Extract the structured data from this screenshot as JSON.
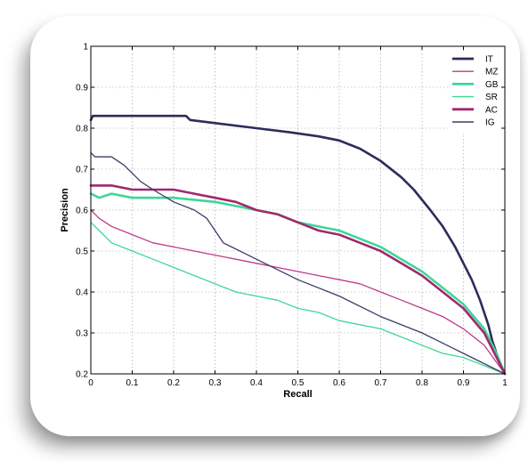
{
  "chart_data": {
    "type": "line",
    "xlabel": "Recall",
    "ylabel": "Precision",
    "xlim": [
      0,
      1
    ],
    "ylim": [
      0.2,
      1
    ],
    "xticks": [
      "0",
      "0.1",
      "0.2",
      "0.3",
      "0.4",
      "0.5",
      "0.6",
      "0.7",
      "0.8",
      "0.9",
      "1"
    ],
    "yticks": [
      "0.2",
      "0.3",
      "0.4",
      "0.5",
      "0.6",
      "0.7",
      "0.8",
      "0.9",
      "1"
    ],
    "grid": true,
    "legend_position": "top-right",
    "series": [
      {
        "name": "IT",
        "color": "#2b2d5a",
        "stroke": "thick",
        "points": [
          [
            0,
            0.82
          ],
          [
            0.005,
            0.83
          ],
          [
            0.23,
            0.83
          ],
          [
            0.24,
            0.82
          ],
          [
            0.32,
            0.81
          ],
          [
            0.4,
            0.8
          ],
          [
            0.48,
            0.79
          ],
          [
            0.55,
            0.78
          ],
          [
            0.6,
            0.77
          ],
          [
            0.65,
            0.75
          ],
          [
            0.7,
            0.72
          ],
          [
            0.75,
            0.68
          ],
          [
            0.78,
            0.65
          ],
          [
            0.82,
            0.6
          ],
          [
            0.85,
            0.56
          ],
          [
            0.88,
            0.51
          ],
          [
            0.9,
            0.47
          ],
          [
            0.92,
            0.43
          ],
          [
            0.94,
            0.38
          ],
          [
            0.96,
            0.32
          ],
          [
            0.97,
            0.28
          ],
          [
            0.98,
            0.25
          ],
          [
            0.99,
            0.22
          ],
          [
            1,
            0.2
          ]
        ]
      },
      {
        "name": "MZ",
        "color": "#c03a8a",
        "stroke": "thin",
        "points": [
          [
            0,
            0.6
          ],
          [
            0.02,
            0.58
          ],
          [
            0.05,
            0.56
          ],
          [
            0.1,
            0.54
          ],
          [
            0.15,
            0.52
          ],
          [
            0.2,
            0.51
          ],
          [
            0.25,
            0.5
          ],
          [
            0.3,
            0.49
          ],
          [
            0.35,
            0.48
          ],
          [
            0.4,
            0.47
          ],
          [
            0.45,
            0.46
          ],
          [
            0.5,
            0.45
          ],
          [
            0.55,
            0.44
          ],
          [
            0.6,
            0.43
          ],
          [
            0.65,
            0.42
          ],
          [
            0.7,
            0.4
          ],
          [
            0.75,
            0.38
          ],
          [
            0.8,
            0.36
          ],
          [
            0.85,
            0.34
          ],
          [
            0.9,
            0.31
          ],
          [
            0.95,
            0.27
          ],
          [
            1,
            0.2
          ]
        ]
      },
      {
        "name": "GB",
        "color": "#3fd698",
        "stroke": "thick",
        "points": [
          [
            0,
            0.64
          ],
          [
            0.02,
            0.63
          ],
          [
            0.05,
            0.64
          ],
          [
            0.1,
            0.63
          ],
          [
            0.2,
            0.63
          ],
          [
            0.3,
            0.62
          ],
          [
            0.35,
            0.61
          ],
          [
            0.4,
            0.6
          ],
          [
            0.45,
            0.59
          ],
          [
            0.5,
            0.57
          ],
          [
            0.55,
            0.56
          ],
          [
            0.6,
            0.55
          ],
          [
            0.65,
            0.53
          ],
          [
            0.7,
            0.51
          ],
          [
            0.75,
            0.48
          ],
          [
            0.8,
            0.45
          ],
          [
            0.85,
            0.41
          ],
          [
            0.9,
            0.37
          ],
          [
            0.95,
            0.31
          ],
          [
            0.98,
            0.25
          ],
          [
            1,
            0.2
          ]
        ]
      },
      {
        "name": "SR",
        "color": "#3fd698",
        "stroke": "thin",
        "points": [
          [
            0,
            0.57
          ],
          [
            0.02,
            0.55
          ],
          [
            0.05,
            0.52
          ],
          [
            0.1,
            0.5
          ],
          [
            0.15,
            0.48
          ],
          [
            0.2,
            0.46
          ],
          [
            0.25,
            0.44
          ],
          [
            0.3,
            0.42
          ],
          [
            0.35,
            0.4
          ],
          [
            0.4,
            0.39
          ],
          [
            0.45,
            0.38
          ],
          [
            0.5,
            0.36
          ],
          [
            0.55,
            0.35
          ],
          [
            0.6,
            0.33
          ],
          [
            0.65,
            0.32
          ],
          [
            0.7,
            0.31
          ],
          [
            0.75,
            0.29
          ],
          [
            0.8,
            0.27
          ],
          [
            0.85,
            0.25
          ],
          [
            0.9,
            0.24
          ],
          [
            0.95,
            0.22
          ],
          [
            1,
            0.2
          ]
        ]
      },
      {
        "name": "AC",
        "color": "#a0286e",
        "stroke": "thick",
        "points": [
          [
            0,
            0.66
          ],
          [
            0.05,
            0.66
          ],
          [
            0.1,
            0.65
          ],
          [
            0.15,
            0.65
          ],
          [
            0.2,
            0.65
          ],
          [
            0.25,
            0.64
          ],
          [
            0.3,
            0.63
          ],
          [
            0.35,
            0.62
          ],
          [
            0.4,
            0.6
          ],
          [
            0.45,
            0.59
          ],
          [
            0.5,
            0.57
          ],
          [
            0.55,
            0.55
          ],
          [
            0.6,
            0.54
          ],
          [
            0.65,
            0.52
          ],
          [
            0.7,
            0.5
          ],
          [
            0.75,
            0.47
          ],
          [
            0.8,
            0.44
          ],
          [
            0.85,
            0.4
          ],
          [
            0.9,
            0.36
          ],
          [
            0.95,
            0.3
          ],
          [
            0.98,
            0.24
          ],
          [
            1,
            0.2
          ]
        ]
      },
      {
        "name": "IG",
        "color": "#3a3d6e",
        "stroke": "thin",
        "points": [
          [
            0,
            0.74
          ],
          [
            0.01,
            0.73
          ],
          [
            0.05,
            0.73
          ],
          [
            0.08,
            0.71
          ],
          [
            0.1,
            0.69
          ],
          [
            0.12,
            0.67
          ],
          [
            0.15,
            0.65
          ],
          [
            0.2,
            0.62
          ],
          [
            0.25,
            0.6
          ],
          [
            0.28,
            0.58
          ],
          [
            0.3,
            0.55
          ],
          [
            0.32,
            0.52
          ],
          [
            0.4,
            0.48
          ],
          [
            0.5,
            0.43
          ],
          [
            0.6,
            0.39
          ],
          [
            0.7,
            0.34
          ],
          [
            0.8,
            0.3
          ],
          [
            0.9,
            0.25
          ],
          [
            1,
            0.2
          ]
        ]
      }
    ]
  }
}
